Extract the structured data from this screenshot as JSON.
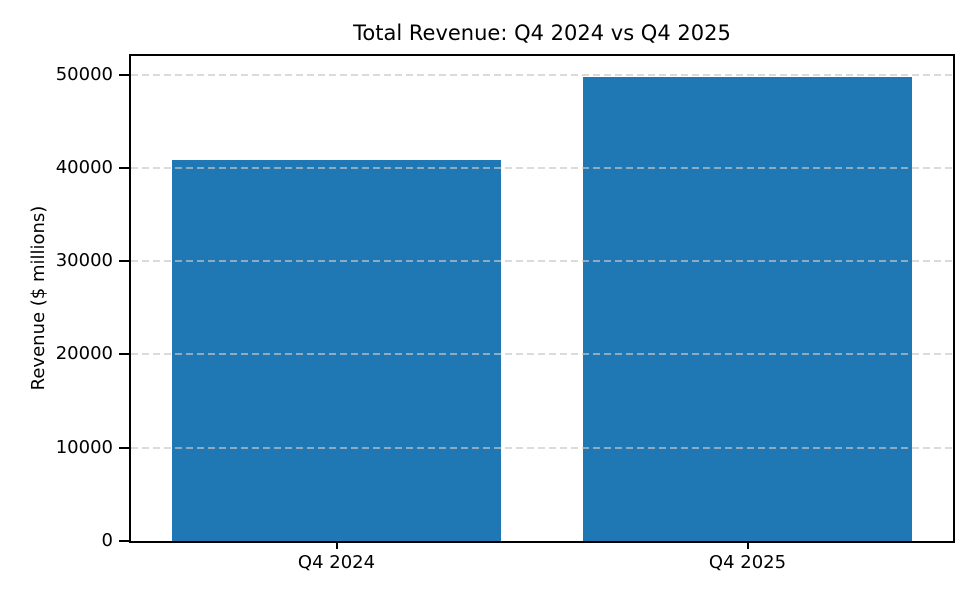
{
  "chart_data": {
    "type": "bar",
    "title": "Total Revenue: Q4 2024 vs Q4 2025",
    "categories": [
      "Q4 2024",
      "Q4 2025"
    ],
    "values": [
      40800,
      49700
    ],
    "xlabel": "",
    "ylabel": "Revenue ($ millions)",
    "ylim": [
      0,
      52000
    ],
    "yticks": [
      0,
      10000,
      20000,
      30000,
      40000,
      50000
    ],
    "xlim": [
      -0.5,
      1.5
    ],
    "bar_width_fraction": 0.8,
    "bar_color": "#1f77b4",
    "grid": "horizontal-dashed",
    "grid_color": "#c8c8c8",
    "spine_color": "#000000",
    "background_color": "#ffffff",
    "legend": "none"
  }
}
